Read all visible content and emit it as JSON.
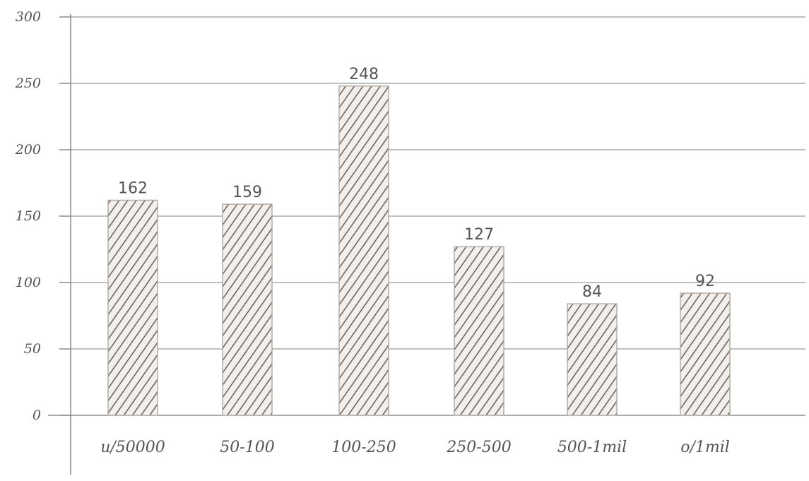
{
  "chart_data": {
    "type": "bar",
    "title": "",
    "xlabel": "",
    "ylabel": "",
    "categories": [
      "u/50000",
      "50-100",
      "100-250",
      "250-500",
      "500-1mil",
      "o/1mil"
    ],
    "values": [
      162,
      159,
      248,
      127,
      84,
      92
    ],
    "data_labels": [
      "162",
      "159",
      "248",
      "127",
      "84",
      "92"
    ],
    "ylim": [
      0,
      300
    ],
    "yticks": [
      0,
      50,
      100,
      150,
      200,
      250,
      300
    ],
    "ytick_labels": [
      "0",
      "50",
      "100",
      "150",
      "200",
      "250",
      "300"
    ],
    "grid": true,
    "legend": "none",
    "style": {
      "bar_hatch_color": "#3a3a3a",
      "bar_fill": "#f4efeb",
      "bar_edge": "#b0a8a2",
      "grid_color": "#9a9a9a",
      "text_color": "#555555"
    }
  }
}
